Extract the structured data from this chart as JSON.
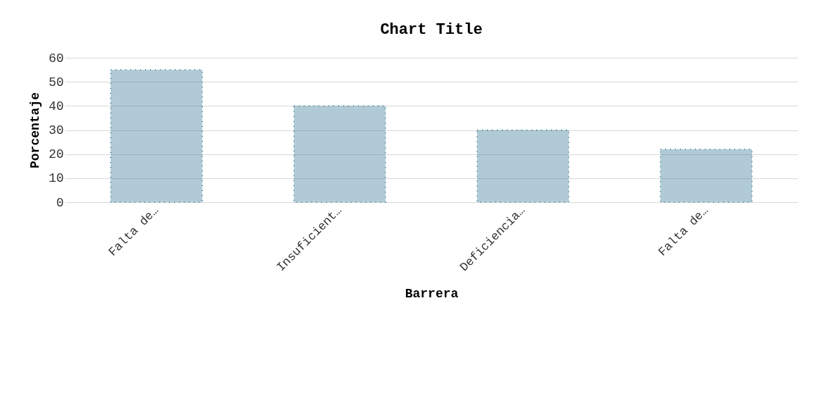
{
  "chart_data": {
    "type": "bar",
    "title": "Chart Title",
    "xlabel": "Barrera",
    "ylabel": "Porcentaje",
    "categories": [
      "Falta de…",
      "Insuficient…",
      "Deficiencia…",
      "Falta de…"
    ],
    "values": [
      55,
      40,
      30,
      22
    ],
    "color": "#1f6a8a",
    "ylim": [
      0,
      60
    ],
    "yticks": [
      0,
      10,
      20,
      30,
      40,
      50,
      60
    ],
    "grid": "y"
  }
}
